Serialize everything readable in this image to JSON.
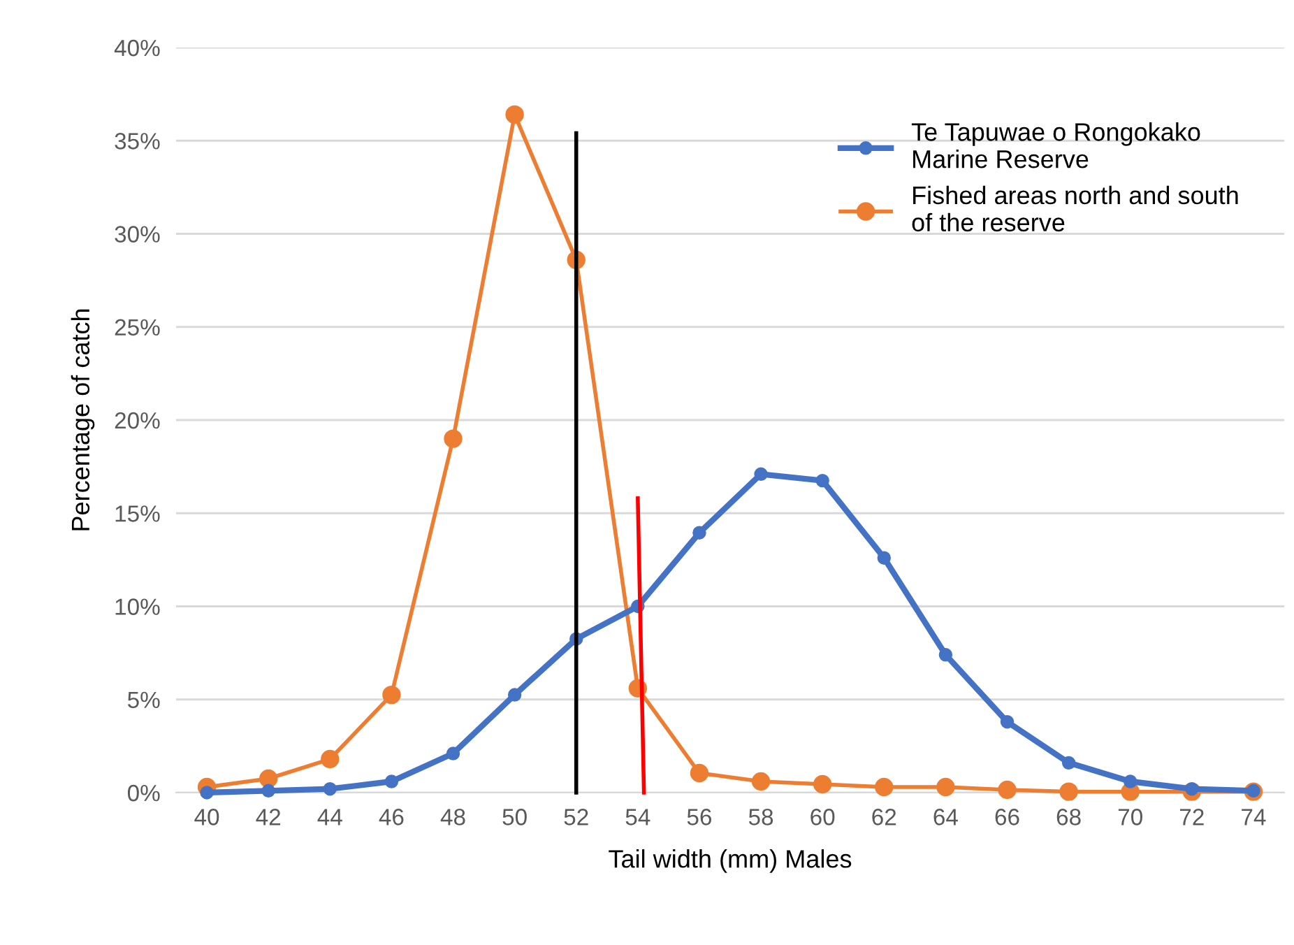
{
  "chart_data": {
    "type": "line",
    "xlabel": "Tail width (mm) Males",
    "ylabel": "Percentage of catch",
    "x": [
      40,
      42,
      44,
      46,
      48,
      50,
      52,
      54,
      56,
      58,
      60,
      62,
      64,
      66,
      68,
      70,
      72,
      74
    ],
    "xlim": [
      39,
      75
    ],
    "xticks": [
      40,
      42,
      44,
      46,
      48,
      50,
      52,
      54,
      56,
      58,
      60,
      62,
      64,
      66,
      68,
      70,
      72,
      74
    ],
    "ylim": [
      0,
      40
    ],
    "yticks": [
      {
        "value": 0,
        "label": "0%"
      },
      {
        "value": 5,
        "label": "5%"
      },
      {
        "value": 10,
        "label": "10%"
      },
      {
        "value": 15,
        "label": "15%"
      },
      {
        "value": 20,
        "label": "20%"
      },
      {
        "value": 25,
        "label": "25%"
      },
      {
        "value": 30,
        "label": "30%"
      },
      {
        "value": 35,
        "label": "35%"
      },
      {
        "value": 40,
        "label": "40%"
      }
    ],
    "grid": "y",
    "legend": "top right",
    "marker": "circle",
    "line_style": "solid",
    "series": [
      {
        "name": "Te Tapuwae o Rongokako\nMarine Reserve",
        "color": "#4472c4",
        "values": [
          0,
          0.1,
          0.2,
          0.6,
          2.1,
          5.25,
          8.25,
          10.0,
          13.95,
          17.1,
          16.75,
          12.6,
          7.4,
          3.8,
          1.6,
          0.6,
          0.2,
          0.1
        ]
      },
      {
        "name": "Fished areas north and south\nof the reserve",
        "color": "#ed7d31",
        "values": [
          0.3,
          0.75,
          1.8,
          5.25,
          19.0,
          36.4,
          28.6,
          5.6,
          1.05,
          0.6,
          0.45,
          0.3,
          0.3,
          0.15,
          0.05,
          0.05,
          0.05,
          0.05
        ]
      },
      {
        "type": "line",
        "marker": "none",
        "color": "#000000",
        "x": [
          52,
          52
        ],
        "values": [
          0,
          35.4
        ]
      },
      {
        "type": "line",
        "marker": "none",
        "color": "#ff0000",
        "x": [
          54.2,
          54.0
        ],
        "values": [
          0,
          15.8
        ]
      }
    ]
  }
}
